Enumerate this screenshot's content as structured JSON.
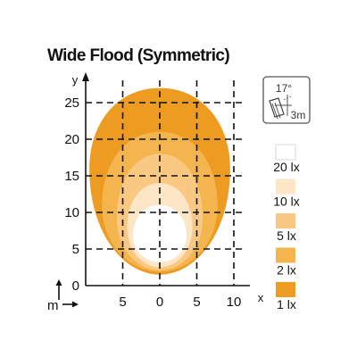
{
  "title": "Wide Flood (Symmetric)",
  "chart_data": {
    "type": "area",
    "title": "Wide Flood (Symmetric)",
    "x_axis": {
      "letter": "x",
      "unit": "m",
      "range": [
        -10,
        10
      ],
      "ticks": [
        -10,
        -5,
        0,
        5,
        10
      ],
      "tick_labels": [
        "10",
        "5",
        "0",
        "5",
        "10"
      ]
    },
    "y_axis": {
      "letter": "y",
      "unit": "m",
      "range": [
        0,
        25
      ],
      "ticks": [
        0,
        5,
        10,
        15,
        20,
        25
      ],
      "tick_labels": [
        "0",
        "5",
        "10",
        "15",
        "20",
        "25"
      ]
    },
    "grid": true,
    "legend_position": "right",
    "series": [
      {
        "name": "1 lx",
        "color": "#ed9c21",
        "half_width": 9.5,
        "y_min": 1.5,
        "y_max": 27,
        "y_widest": 16.0
      },
      {
        "name": "2 lx",
        "color": "#f5b54e",
        "half_width": 7.8,
        "y_min": 1.9,
        "y_max": 21,
        "y_widest": 11.0
      },
      {
        "name": "5 lx",
        "color": "#f9c882",
        "half_width": 5.8,
        "y_min": 2.1,
        "y_max": 18,
        "y_widest": 9.2
      },
      {
        "name": "10 lx",
        "color": "#fde6c6",
        "half_width": 4.4,
        "y_min": 2.5,
        "y_max": 14,
        "y_widest": 8.0
      },
      {
        "name": "20 lx",
        "color": "#ffffff",
        "half_width": 3.6,
        "y_min": 3.2,
        "y_max": 11,
        "y_widest": 6.8
      }
    ]
  },
  "beam_icon": {
    "angle": "17°",
    "distance": "3m",
    "icon": "beam-angle-icon"
  }
}
